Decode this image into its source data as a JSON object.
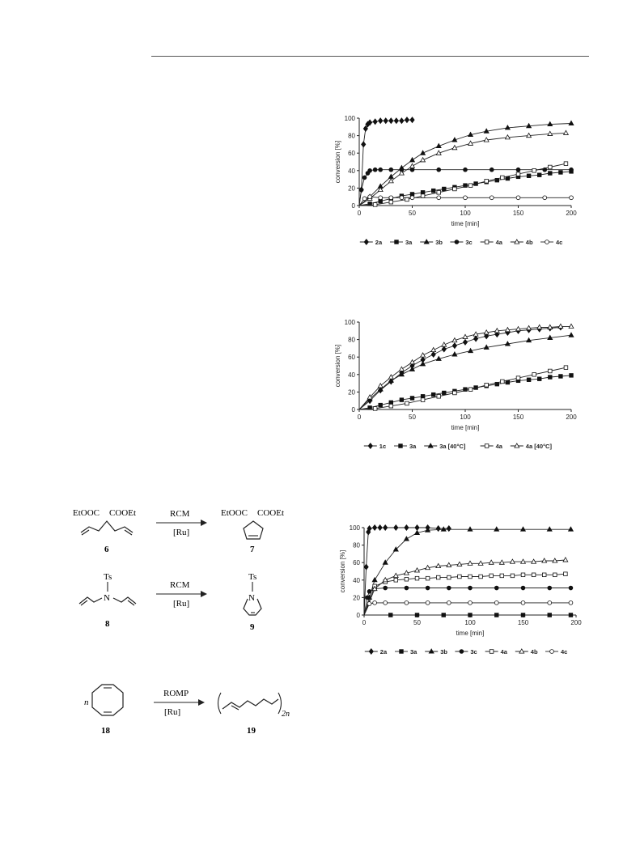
{
  "charts": [
    {
      "type": "line",
      "xlabel": "time [min]",
      "ylabel": "conversion [%]",
      "xlim": [
        0,
        200
      ],
      "ylim": [
        0,
        100
      ],
      "xticks": [
        "0",
        "50",
        "100",
        "150",
        "200"
      ],
      "yticks": [
        "0",
        "20",
        "40",
        "60",
        "80",
        "100"
      ],
      "legend_position": "bottom",
      "series": [
        {
          "name": "2a",
          "marker": "diamond-filled",
          "x": [
            0,
            2,
            4,
            6,
            8,
            10,
            15,
            20,
            25,
            30,
            35,
            40,
            45,
            50
          ],
          "y": [
            0,
            18,
            70,
            88,
            93,
            95,
            96,
            97,
            97,
            97,
            97,
            97,
            98,
            98
          ]
        },
        {
          "name": "3a",
          "marker": "square-filled",
          "x": [
            0,
            10,
            20,
            30,
            40,
            50,
            60,
            70,
            80,
            90,
            100,
            110,
            120,
            130,
            140,
            150,
            160,
            170,
            180,
            190,
            200
          ],
          "y": [
            0,
            2,
            5,
            8,
            11,
            13,
            15,
            17,
            19,
            21,
            23,
            25,
            27,
            29,
            31,
            33,
            34,
            35,
            37,
            38,
            39
          ]
        },
        {
          "name": "3b",
          "marker": "triangle-filled",
          "x": [
            0,
            10,
            20,
            30,
            40,
            50,
            60,
            75,
            90,
            105,
            120,
            140,
            160,
            180,
            200
          ],
          "y": [
            0,
            10,
            22,
            33,
            43,
            52,
            60,
            68,
            75,
            81,
            85,
            89,
            91,
            93,
            94
          ]
        },
        {
          "name": "3c",
          "marker": "circle-filled",
          "x": [
            0,
            2,
            5,
            8,
            10,
            15,
            20,
            30,
            40,
            50,
            75,
            100,
            125,
            150,
            175,
            200
          ],
          "y": [
            0,
            18,
            32,
            37,
            40,
            41,
            41,
            41,
            41,
            41,
            41,
            41,
            41,
            41,
            41,
            41
          ]
        },
        {
          "name": "4a",
          "marker": "square-open",
          "x": [
            0,
            15,
            30,
            45,
            60,
            75,
            90,
            105,
            120,
            135,
            150,
            165,
            180,
            195
          ],
          "y": [
            0,
            1,
            4,
            7,
            11,
            15,
            19,
            23,
            28,
            32,
            36,
            40,
            44,
            48
          ]
        },
        {
          "name": "4b",
          "marker": "triangle-open",
          "x": [
            0,
            10,
            20,
            30,
            40,
            50,
            60,
            75,
            90,
            105,
            120,
            140,
            160,
            180,
            195
          ],
          "y": [
            0,
            8,
            18,
            28,
            37,
            45,
            52,
            60,
            66,
            71,
            75,
            78,
            80,
            82,
            83
          ]
        },
        {
          "name": "4c",
          "marker": "circle-open",
          "x": [
            0,
            5,
            10,
            20,
            30,
            40,
            50,
            75,
            100,
            125,
            150,
            175,
            200
          ],
          "y": [
            0,
            8,
            10,
            9,
            9,
            9,
            9,
            9,
            9,
            9,
            9,
            9,
            9
          ]
        }
      ]
    },
    {
      "type": "line",
      "xlabel": "time [min]",
      "ylabel": "conversion [%]",
      "xlim": [
        0,
        200
      ],
      "ylim": [
        0,
        100
      ],
      "xticks": [
        "0",
        "50",
        "100",
        "150",
        "200"
      ],
      "yticks": [
        "0",
        "20",
        "40",
        "60",
        "80",
        "100"
      ],
      "legend_position": "bottom",
      "series": [
        {
          "name": "1c",
          "marker": "diamond-filled",
          "x": [
            0,
            10,
            20,
            30,
            40,
            50,
            60,
            70,
            80,
            90,
            100,
            110,
            120,
            130,
            140,
            150,
            160,
            170,
            180,
            190
          ],
          "y": [
            0,
            10,
            22,
            32,
            42,
            50,
            57,
            63,
            69,
            73,
            77,
            81,
            84,
            86,
            88,
            90,
            91,
            92,
            93,
            94
          ]
        },
        {
          "name": "3a",
          "marker": "square-filled",
          "x": [
            0,
            10,
            20,
            30,
            40,
            50,
            60,
            70,
            80,
            90,
            100,
            110,
            120,
            130,
            140,
            150,
            160,
            170,
            180,
            190,
            200
          ],
          "y": [
            0,
            2,
            5,
            8,
            11,
            13,
            15,
            17,
            19,
            21,
            23,
            25,
            27,
            29,
            31,
            33,
            34,
            35,
            37,
            38,
            39
          ]
        },
        {
          "name": "3a [40°C]",
          "marker": "triangle-filled",
          "x": [
            0,
            10,
            20,
            30,
            40,
            50,
            60,
            75,
            90,
            105,
            120,
            140,
            160,
            180,
            200
          ],
          "y": [
            0,
            12,
            23,
            33,
            40,
            46,
            52,
            58,
            63,
            67,
            71,
            75,
            79,
            82,
            85
          ]
        },
        {
          "name": "4a",
          "marker": "square-open",
          "x": [
            0,
            15,
            30,
            45,
            60,
            75,
            90,
            105,
            120,
            135,
            150,
            165,
            180,
            195
          ],
          "y": [
            0,
            1,
            4,
            7,
            11,
            15,
            19,
            23,
            28,
            32,
            36,
            40,
            44,
            48
          ]
        },
        {
          "name": "4a [40°C]",
          "marker": "triangle-open",
          "x": [
            0,
            10,
            20,
            30,
            40,
            50,
            60,
            70,
            80,
            90,
            100,
            110,
            120,
            130,
            140,
            150,
            160,
            170,
            180,
            190,
            200
          ],
          "y": [
            0,
            14,
            27,
            37,
            46,
            54,
            62,
            68,
            74,
            79,
            83,
            86,
            88,
            90,
            91,
            92,
            93,
            94,
            94,
            95,
            95
          ]
        }
      ]
    },
    {
      "type": "line",
      "xlabel": "time [min]",
      "ylabel": "conversion [%]",
      "xlim": [
        0,
        200
      ],
      "ylim": [
        0,
        100
      ],
      "xticks": [
        "0",
        "50",
        "100",
        "150",
        "200"
      ],
      "yticks": [
        "0",
        "20",
        "40",
        "60",
        "80",
        "100"
      ],
      "legend_position": "bottom",
      "series": [
        {
          "name": "2a",
          "marker": "diamond-filled",
          "x": [
            0,
            2,
            4,
            5,
            10,
            15,
            20,
            30,
            40,
            50,
            60,
            70,
            80
          ],
          "y": [
            0,
            55,
            95,
            99,
            100,
            100,
            100,
            100,
            100,
            100,
            100,
            99,
            99
          ]
        },
        {
          "name": "3a",
          "marker": "square-filled",
          "x": [
            0,
            25,
            50,
            75,
            100,
            125,
            150,
            175,
            195
          ],
          "y": [
            0,
            0,
            0,
            0,
            0,
            0,
            0,
            0,
            0
          ]
        },
        {
          "name": "3b",
          "marker": "triangle-filled",
          "x": [
            0,
            5,
            10,
            20,
            30,
            40,
            50,
            60,
            75,
            100,
            125,
            150,
            175,
            195
          ],
          "y": [
            0,
            20,
            40,
            60,
            75,
            87,
            94,
            97,
            98,
            98,
            98,
            98,
            98,
            98
          ]
        },
        {
          "name": "3c",
          "marker": "circle-filled",
          "x": [
            0,
            3,
            5,
            10,
            20,
            40,
            60,
            80,
            100,
            125,
            150,
            175,
            195
          ],
          "y": [
            0,
            20,
            27,
            30,
            31,
            31,
            31,
            31,
            31,
            31,
            31,
            31,
            31
          ]
        },
        {
          "name": "4a",
          "marker": "square-open",
          "x": [
            0,
            10,
            20,
            30,
            40,
            50,
            60,
            70,
            80,
            90,
            100,
            110,
            120,
            130,
            140,
            150,
            160,
            170,
            180,
            190
          ],
          "y": [
            0,
            33,
            38,
            40,
            41,
            42,
            42,
            43,
            43,
            44,
            44,
            44,
            45,
            45,
            45,
            46,
            46,
            46,
            46,
            47
          ]
        },
        {
          "name": "4b",
          "marker": "triangle-open",
          "x": [
            0,
            10,
            20,
            30,
            40,
            50,
            60,
            70,
            80,
            90,
            100,
            110,
            120,
            130,
            140,
            150,
            160,
            170,
            180,
            190
          ],
          "y": [
            0,
            30,
            40,
            45,
            48,
            51,
            54,
            56,
            57,
            58,
            59,
            59,
            60,
            60,
            61,
            61,
            61,
            62,
            62,
            63
          ]
        },
        {
          "name": "4c",
          "marker": "circle-open",
          "x": [
            0,
            5,
            10,
            20,
            40,
            60,
            80,
            100,
            125,
            150,
            175,
            195
          ],
          "y": [
            0,
            13,
            14,
            14,
            14,
            14,
            14,
            14,
            14,
            14,
            14,
            14
          ]
        }
      ]
    }
  ],
  "schemes": [
    {
      "reaction": "RCM",
      "catalyst": "[Ru]",
      "substrate": "6",
      "product": "7",
      "substituents": [
        "EtOOC",
        "COOEt"
      ]
    },
    {
      "reaction": "RCM",
      "catalyst": "[Ru]",
      "substrate": "8",
      "product": "9",
      "substituents": [
        "Ts",
        "N"
      ]
    },
    {
      "reaction": "ROMP",
      "catalyst": "[Ru]",
      "substrate": "18",
      "product": "19",
      "prefix": "n",
      "subscript": "2n"
    }
  ]
}
